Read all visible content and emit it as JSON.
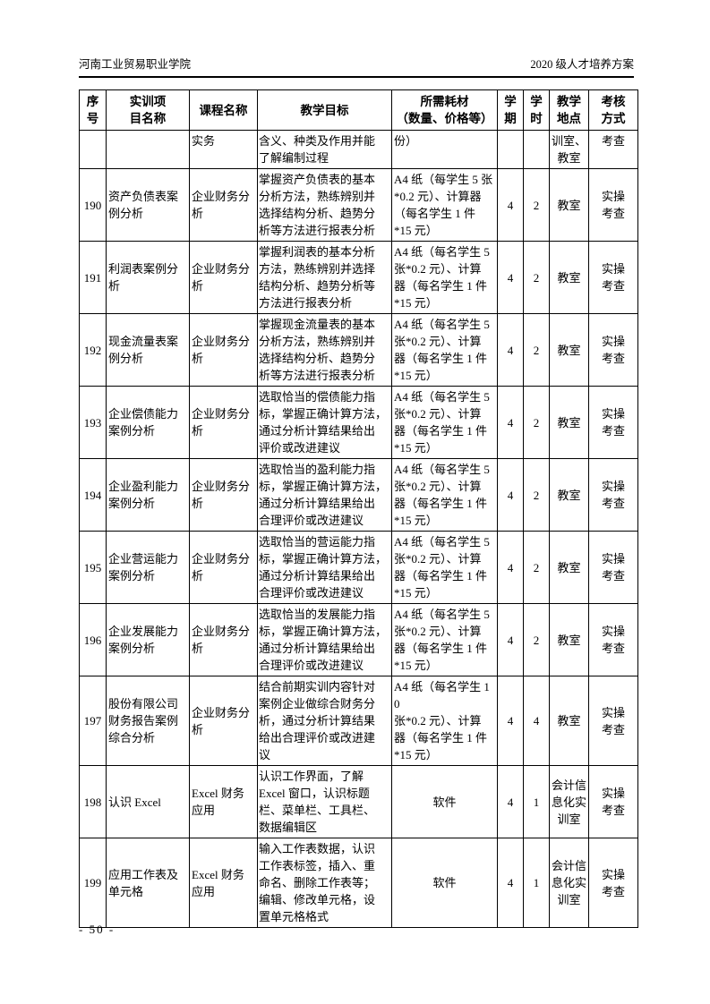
{
  "page": {
    "header": {
      "left": "河南工业贸易职业学院",
      "right": "2020 级人才培养方案"
    },
    "footer": {
      "page_number": "- 50 -"
    }
  },
  "table": {
    "columns": [
      {
        "key": "no",
        "label": "序\n号"
      },
      {
        "key": "project",
        "label": "实训项\n目名称"
      },
      {
        "key": "course",
        "label": "课程名称"
      },
      {
        "key": "objective",
        "label": "教学目标"
      },
      {
        "key": "consumables",
        "label": "所需耗材\n（数量、价格等）"
      },
      {
        "key": "semester",
        "label": "学\n期"
      },
      {
        "key": "hours",
        "label": "学\n时"
      },
      {
        "key": "location",
        "label": "教学\n地点"
      },
      {
        "key": "assessment",
        "label": "考核\n方式"
      }
    ],
    "rows": [
      {
        "no": "",
        "project": "",
        "course": "实务",
        "objective": "含义、种类及作用并能\n了解编制过程",
        "consumables": "份）",
        "semester": "",
        "hours": "",
        "location": "训室、\n教室",
        "assessment": "考查",
        "valign": "top"
      },
      {
        "no": "190",
        "project": "资产负债表案\n例分析",
        "course": "企业财务分\n析",
        "objective": "掌握资产负债表的基本\n分析方法，熟练辨别并\n选择结构分析、趋势分\n析等方法进行报表分析",
        "consumables": "A4 纸（每学生 5 张\n*0.2 元）、计算器\n（每名学生 1 件\n*15 元）",
        "semester": "4",
        "hours": "2",
        "location": "教室",
        "assessment": "实操\n考查"
      },
      {
        "no": "191",
        "project": "利润表案例分\n析",
        "course": "企业财务分\n析",
        "objective": "掌握利润表的基本分析\n方法，熟练辨别并选择\n结构分析、趋势分析等\n方法进行报表分析",
        "consumables": "A4 纸（每名学生 5\n张*0.2 元）、计算\n器（每名学生 1 件\n*15 元）",
        "semester": "4",
        "hours": "2",
        "location": "教室",
        "assessment": "实操\n考查"
      },
      {
        "no": "192",
        "project": "现金流量表案\n例分析",
        "course": "企业财务分\n析",
        "objective": "掌握现金流量表的基本\n分析方法，熟练辨别并\n选择结构分析、趋势分\n析等方法进行报表分析",
        "consumables": "A4 纸（每名学生 5\n张*0.2 元）、计算\n器（每名学生 1 件\n*15 元）",
        "semester": "4",
        "hours": "2",
        "location": "教室",
        "assessment": "实操\n考查"
      },
      {
        "no": "193",
        "project": "企业偿债能力\n案例分析",
        "course": "企业财务分\n析",
        "objective": "选取恰当的偿债能力指\n标，掌握正确计算方法，\n通过分析计算结果给出\n评价或改进建议",
        "consumables": "A4 纸（每名学生 5\n张*0.2 元）、计算\n器（每名学生 1 件\n*15 元）",
        "semester": "4",
        "hours": "2",
        "location": "教室",
        "assessment": "实操\n考查"
      },
      {
        "no": "194",
        "project": "企业盈利能力\n案例分析",
        "course": "企业财务分\n析",
        "objective": "选取恰当的盈利能力指\n标，掌握正确计算方法，\n通过分析计算结果给出\n合理评价或改进建议",
        "consumables": "A4 纸（每名学生 5\n张*0.2 元）、计算\n器（每名学生 1 件\n*15 元）",
        "semester": "4",
        "hours": "2",
        "location": "教室",
        "assessment": "实操\n考查"
      },
      {
        "no": "195",
        "project": "企业营运能力\n案例分析",
        "course": "企业财务分\n析",
        "objective": "选取恰当的营运能力指\n标，掌握正确计算方法，\n通过分析计算结果给出\n合理评价或改进建议",
        "consumables": "A4 纸（每名学生 5\n张*0.2 元）、计算\n器（每名学生 1 件\n*15 元）",
        "semester": "4",
        "hours": "2",
        "location": "教室",
        "assessment": "实操\n考查"
      },
      {
        "no": "196",
        "project": "企业发展能力\n案例分析",
        "course": "企业财务分\n析",
        "objective": "选取恰当的发展能力指\n标，掌握正确计算方法，\n通过分析计算结果给出\n合理评价或改进建议",
        "consumables": "A4 纸（每名学生 5\n张*0.2 元）、计算\n器（每名学生 1 件\n*15 元）",
        "semester": "4",
        "hours": "2",
        "location": "教室",
        "assessment": "实操\n考查"
      },
      {
        "no": "197",
        "project": "股份有限公司\n财务报告案例\n综合分析",
        "course": "企业财务分\n析",
        "objective": "结合前期实训内容针对\n案例企业做综合财务分\n析，通过分析计算结果\n给出合理评价或改进建\n议",
        "consumables": "A4 纸（每名学生 10\n张*0.2 元）、计算\n器（每名学生 1 件\n*15 元）",
        "semester": "4",
        "hours": "4",
        "location": "教室",
        "assessment": "实操\n考查"
      },
      {
        "no": "198",
        "project": "认识 Excel",
        "course": "Excel 财务\n应用",
        "objective": "认识工作界面，了解\nExcel 窗口，认识标题\n栏、菜单栏、工具栏、\n数据编辑区",
        "consumables": "软件",
        "consumables_align": "center",
        "semester": "4",
        "hours": "1",
        "location": "会计信\n息化实\n训室",
        "assessment": "实操\n考查"
      },
      {
        "no": "199",
        "project": "应用工作表及\n单元格",
        "course": "Excel 财务\n应用",
        "objective": "输入工作表数据，认识\n工作表标签，插入、重\n命名、删除工作表等；\n编辑、修改单元格，设\n置单元格格式",
        "consumables": "软件",
        "consumables_align": "center",
        "semester": "4",
        "hours": "1",
        "location": "会计信\n息化实\n训室",
        "assessment": "实操\n考查"
      }
    ]
  }
}
